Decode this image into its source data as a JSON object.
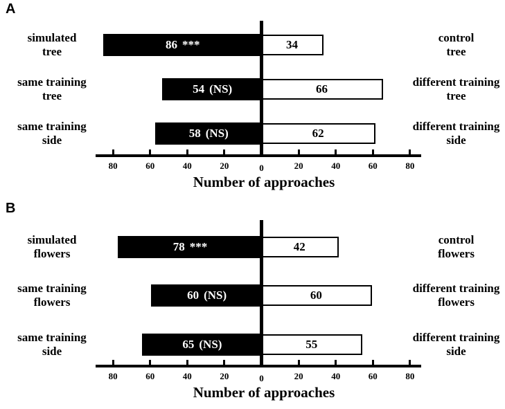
{
  "figure": {
    "background_color": "#ffffff",
    "text_color": "#000000",
    "left_bar_fill": "#000000",
    "left_bar_text_color": "#ffffff",
    "right_bar_fill": "#ffffff",
    "right_bar_border": "#000000"
  },
  "chart_data": [
    {
      "type": "bar",
      "panel": "A",
      "orientation": "diverging-horizontal",
      "axis_title": "Number of approaches",
      "axis_ticks": [
        80,
        60,
        40,
        20,
        0,
        20,
        40,
        60,
        80
      ],
      "axis_unit_range": [
        -88,
        86
      ],
      "grid": false,
      "rows": [
        {
          "left_label_lines": [
            "simulated",
            "tree"
          ],
          "left_value": 86,
          "left_significance": "***",
          "right_value": 34,
          "right_label_lines": [
            "control",
            "tree"
          ]
        },
        {
          "left_label_lines": [
            "same training",
            "tree"
          ],
          "left_value": 54,
          "left_significance": "(NS)",
          "right_value": 66,
          "right_label_lines": [
            "different training",
            "tree"
          ]
        },
        {
          "left_label_lines": [
            "same training",
            "side"
          ],
          "left_value": 58,
          "left_significance": "(NS)",
          "right_value": 62,
          "right_label_lines": [
            "different training",
            "side"
          ]
        }
      ]
    },
    {
      "type": "bar",
      "panel": "B",
      "orientation": "diverging-horizontal",
      "axis_title": "Number of approaches",
      "axis_ticks": [
        80,
        60,
        40,
        20,
        0,
        20,
        40,
        60,
        80
      ],
      "axis_unit_range": [
        -88,
        86
      ],
      "grid": false,
      "rows": [
        {
          "left_label_lines": [
            "simulated",
            "flowers"
          ],
          "left_value": 78,
          "left_significance": "***",
          "right_value": 42,
          "right_label_lines": [
            "control",
            "flowers"
          ]
        },
        {
          "left_label_lines": [
            "same training",
            "flowers"
          ],
          "left_value": 60,
          "left_significance": "(NS)",
          "right_value": 60,
          "right_label_lines": [
            "different training",
            "flowers"
          ]
        },
        {
          "left_label_lines": [
            "same training",
            "side"
          ],
          "left_value": 65,
          "left_significance": "(NS)",
          "right_value": 55,
          "right_label_lines": [
            "different training",
            "side"
          ]
        }
      ]
    }
  ]
}
